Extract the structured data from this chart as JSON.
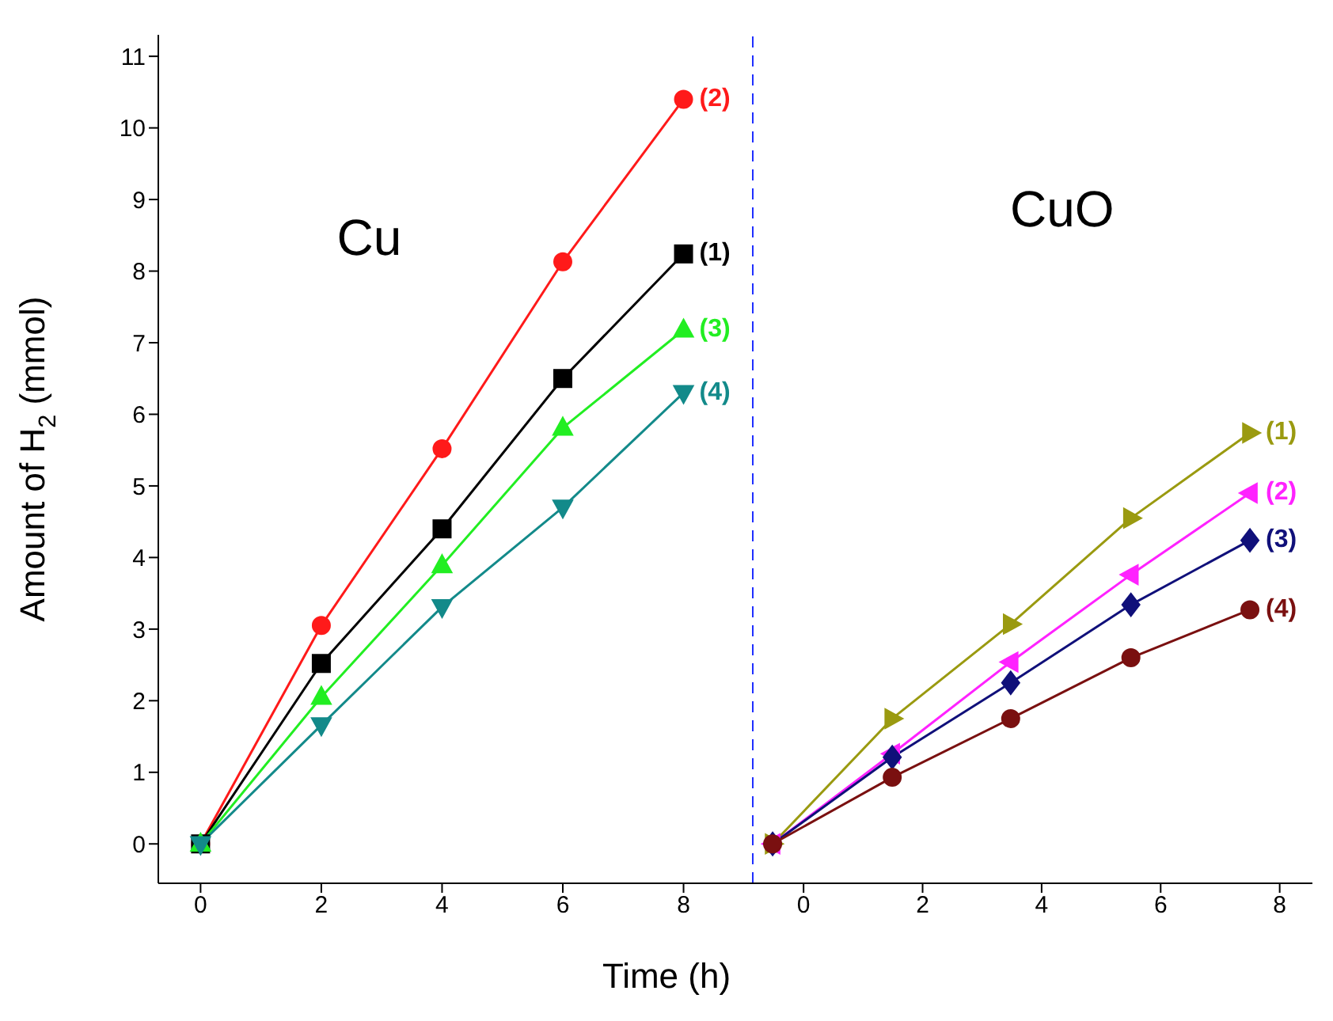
{
  "chart_data": [
    {
      "type": "line",
      "ylabel": "Amount of H$_{2}$ (mmol)",
      "xlabel": "Time (h)",
      "annotations": [
        "Cu"
      ],
      "xlim": [
        -0.7,
        9.16
      ],
      "xticks": [
        0,
        2,
        4,
        6,
        8
      ],
      "ylim": [
        -0.55,
        11.3
      ],
      "yticks": [
        0,
        1,
        2,
        3,
        4,
        5,
        6,
        7,
        8,
        9,
        10,
        11
      ],
      "line_style": "solid",
      "ref_lines": [
        {
          "axis": "x",
          "value": 9.16,
          "color": "#1f2fff",
          "line_style": "dashed"
        }
      ],
      "x": [
        0,
        2,
        4,
        6,
        8
      ],
      "series": [
        {
          "name": "(2)",
          "color": "#ff1a1a",
          "marker": "circle",
          "values": [
            0,
            3.05,
            5.52,
            8.13,
            10.4
          ]
        },
        {
          "name": "(1)",
          "color": "#000000",
          "marker": "square",
          "values": [
            0,
            2.52,
            4.4,
            6.5,
            8.24
          ]
        },
        {
          "name": "(3)",
          "color": "#22ee22",
          "marker": "triangle",
          "values": [
            0,
            2.05,
            3.89,
            5.81,
            7.18
          ]
        },
        {
          "name": "(4)",
          "color": "#138a8a",
          "marker": "triangle-down",
          "values": [
            0,
            1.66,
            3.31,
            4.7,
            6.3
          ]
        }
      ]
    },
    {
      "type": "line",
      "annotations": [
        "CuO"
      ],
      "xlim": [
        -0.84,
        8.55
      ],
      "xticks": [
        0,
        2,
        4,
        6,
        8
      ],
      "ylim": [
        -0.55,
        11.3
      ],
      "tick_labels": "x",
      "line_style": "solid",
      "x": [
        -0.52,
        1.49,
        3.48,
        5.5,
        7.5
      ],
      "series": [
        {
          "name": "(1)",
          "color": "#9a9a10",
          "marker": "triangle-right",
          "values": [
            0,
            1.75,
            3.07,
            4.55,
            5.74
          ]
        },
        {
          "name": "(2)",
          "color": "#ff22ff",
          "marker": "triangle-left",
          "values": [
            0,
            1.26,
            2.54,
            3.76,
            4.9
          ]
        },
        {
          "name": "(3)",
          "color": "#10107a",
          "marker": "diamond",
          "values": [
            0,
            1.21,
            2.25,
            3.34,
            4.24
          ]
        },
        {
          "name": "(4)",
          "color": "#7a1010",
          "marker": "circle",
          "values": [
            0,
            0.93,
            1.75,
            2.6,
            3.27
          ]
        }
      ]
    }
  ]
}
